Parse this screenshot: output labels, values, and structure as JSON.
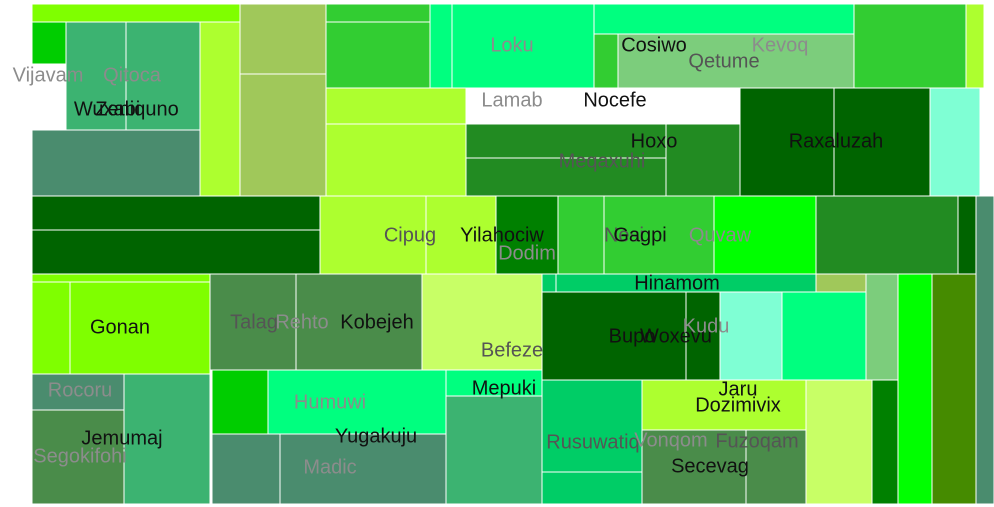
{
  "chart_data": {
    "type": "treemap",
    "title": "",
    "tiles": [
      {
        "color": "#7fff00"
      },
      {
        "color": "#32cd32"
      },
      {
        "color": "#00ff7f"
      },
      {
        "color": "#00ff7f"
      },
      {
        "color": "#00ff7f"
      },
      {
        "color": "#32cd32"
      },
      {
        "color": "#adff2f"
      },
      {
        "color": "#00cd00"
      },
      {
        "color": "#3cb371"
      },
      {
        "color": "#3cb371"
      },
      {
        "color": "#4a8c6e"
      },
      {
        "color": "#adff2f"
      },
      {
        "color": "#a0c85a"
      },
      {
        "color": "#a0c85a"
      },
      {
        "color": "#32cd32"
      },
      {
        "color": "#32cd32"
      },
      {
        "color": "#adff2f"
      },
      {
        "color": "#adff2f"
      },
      {
        "color": "#7ccd7c"
      },
      {
        "color": "#228b22"
      },
      {
        "color": "#228b22"
      },
      {
        "color": "#228b22"
      },
      {
        "color": "#006400"
      },
      {
        "color": "#006400"
      },
      {
        "color": "#7fffd4"
      },
      {
        "color": "#006400"
      },
      {
        "color": "#006400"
      },
      {
        "color": "#adff2f"
      },
      {
        "color": "#adff2f"
      },
      {
        "color": "#008000"
      },
      {
        "color": "#32cd32"
      },
      {
        "color": "#32cd32"
      },
      {
        "color": "#00ff00"
      },
      {
        "color": "#228b22"
      },
      {
        "color": "#006400"
      },
      {
        "color": "#4a8c6e"
      },
      {
        "color": "#7fff00"
      },
      {
        "color": "#7fff00"
      },
      {
        "color": "#7fff00"
      },
      {
        "color": "#4a8c4a"
      },
      {
        "color": "#c8ff66"
      },
      {
        "color": "#00cd66"
      },
      {
        "color": "#00cd66"
      },
      {
        "color": "#a0c85a"
      },
      {
        "color": "#7ccd7c"
      },
      {
        "color": "#00ff00"
      },
      {
        "color": "#458b00"
      },
      {
        "color": "#006400"
      },
      {
        "color": "#006400"
      },
      {
        "color": "#7fffd4"
      },
      {
        "color": "#00ff7f"
      },
      {
        "color": "#4a8c6e"
      },
      {
        "color": "#3cb371"
      },
      {
        "color": "#4a8c4a"
      },
      {
        "color": "#4a8c4a"
      },
      {
        "color": "#00cd00"
      },
      {
        "color": "#00ff7f"
      },
      {
        "color": "#00ff7f"
      },
      {
        "color": "#4a8c6e"
      },
      {
        "color": "#4a8c6e"
      },
      {
        "color": "#3cb371"
      },
      {
        "color": "#00cd66"
      },
      {
        "color": "#00cd66"
      },
      {
        "color": "#adff2f"
      },
      {
        "color": "#c8ff66"
      },
      {
        "color": "#4a8c4a"
      },
      {
        "color": "#4a8c4a"
      },
      {
        "color": "#008000"
      }
    ],
    "labels": [
      {
        "text": "Vijavam",
        "color": "#8c8c8c"
      },
      {
        "text": "Qitoca",
        "color": "#8c8c8c"
      },
      {
        "text": "Wuxabi",
        "color": "#111111"
      },
      {
        "text": "Zeniquno",
        "color": "#111111"
      },
      {
        "text": "Loku",
        "color": "#8c8c8c"
      },
      {
        "text": "Cosiwo",
        "color": "#111111"
      },
      {
        "text": "Kevoq",
        "color": "#8c8c8c"
      },
      {
        "text": "Qetume",
        "color": "#555555"
      },
      {
        "text": "Lamab",
        "color": "#8c8c8c"
      },
      {
        "text": "Nocefe",
        "color": "#111111"
      },
      {
        "text": "Hoxo",
        "color": "#111111"
      },
      {
        "text": "Raxaluzah",
        "color": "#111111"
      },
      {
        "text": "Meqaxuhi",
        "color": "#555555"
      },
      {
        "text": "Cipug",
        "color": "#555555"
      },
      {
        "text": "Yilahociw",
        "color": "#111111"
      },
      {
        "text": "Dodim",
        "color": "#8c8c8c"
      },
      {
        "text": "Nesi",
        "color": "#555555"
      },
      {
        "text": "Gagpi",
        "color": "#111111"
      },
      {
        "text": "Quvaw",
        "color": "#8c8c8c"
      },
      {
        "text": "Hinamom",
        "color": "#111111"
      },
      {
        "text": "Gonan",
        "color": "#111111"
      },
      {
        "text": "Talag",
        "color": "#555555"
      },
      {
        "text": "Rehto",
        "color": "#8c8c8c"
      },
      {
        "text": "Kobejeh",
        "color": "#111111"
      },
      {
        "text": "Befeze",
        "color": "#555555"
      },
      {
        "text": "Bupo",
        "color": "#111111"
      },
      {
        "text": "Woxevu",
        "color": "#111111"
      },
      {
        "text": "Kudu",
        "color": "#8c8c8c"
      },
      {
        "text": "Rocoru",
        "color": "#8c8c8c"
      },
      {
        "text": "Jemumaj",
        "color": "#111111"
      },
      {
        "text": "Segokifohi",
        "color": "#8c8c8c"
      },
      {
        "text": "Humuwi",
        "color": "#8c8c8c"
      },
      {
        "text": "Yugakuju",
        "color": "#111111"
      },
      {
        "text": "Madic",
        "color": "#8c8c8c"
      },
      {
        "text": "Mepuki",
        "color": "#111111"
      },
      {
        "text": "Jaru",
        "color": "#111111"
      },
      {
        "text": "Dozimivix",
        "color": "#111111"
      },
      {
        "text": "Rusuwatiq",
        "color": "#555555"
      },
      {
        "text": "Vonqom",
        "color": "#8c8c8c"
      },
      {
        "text": "Fuzoqam",
        "color": "#555555"
      },
      {
        "text": "Secevag",
        "color": "#111111"
      }
    ]
  }
}
